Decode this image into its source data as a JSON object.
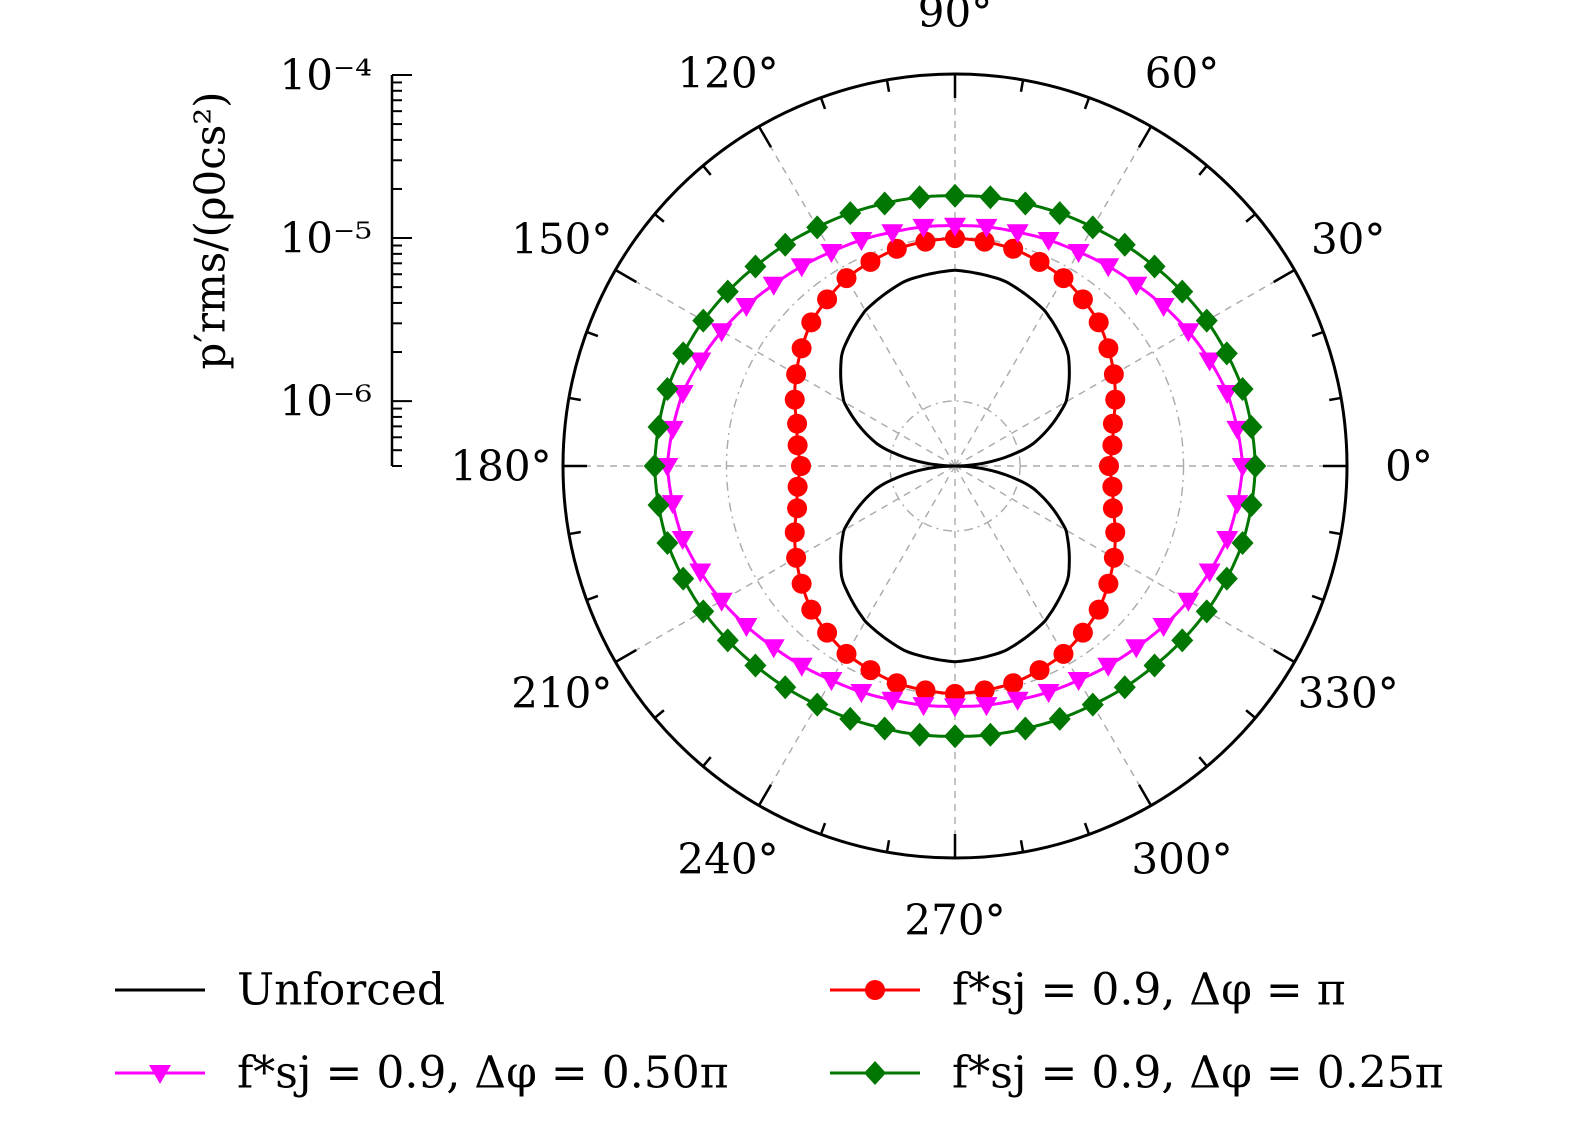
{
  "chart_data": {
    "type": "polar",
    "angular_ticks_deg": [
      0,
      30,
      60,
      90,
      120,
      150,
      180,
      210,
      240,
      270,
      300,
      330
    ],
    "angular_tick_labels": [
      "0°",
      "30°",
      "60°",
      "90°",
      "120°",
      "150°",
      "180°",
      "210°",
      "240°",
      "270°",
      "300°",
      "330°"
    ],
    "radial_axis": {
      "label": "p′rms/(ρ0cs²)",
      "scale": "log",
      "range": [
        4e-07,
        0.0001
      ],
      "tick_values": [
        1e-06,
        1e-05,
        0.0001
      ],
      "tick_labels": [
        "10⁻⁶",
        "10⁻⁵",
        "10⁻⁴"
      ]
    },
    "grid": true,
    "legend_position": "bottom",
    "series": [
      {
        "name": "Unforced",
        "color": "#000000",
        "marker": "none",
        "angles_deg": [
          0,
          15,
          30,
          45,
          60,
          75,
          90,
          105,
          120,
          135,
          150,
          165,
          180,
          195,
          210,
          225,
          240,
          255,
          270,
          285,
          300,
          315,
          330,
          345
        ],
        "values": [
          4e-07,
          1.2e-06,
          2.43e-06,
          3.8e-06,
          5e-06,
          5.95e-06,
          6.3e-06,
          5.95e-06,
          5e-06,
          3.8e-06,
          2.43e-06,
          1.2e-06,
          4e-07,
          1.2e-06,
          2.43e-06,
          3.8e-06,
          5e-06,
          5.95e-06,
          6.3e-06,
          5.95e-06,
          5e-06,
          3.8e-06,
          2.43e-06,
          1.2e-06
        ]
      },
      {
        "name": "f*sj = 0.9, Δφ = π",
        "color": "#ff0000",
        "marker": "circle",
        "angles_deg": [
          0,
          15,
          30,
          45,
          60,
          75,
          90,
          105,
          120,
          135,
          150,
          165,
          180,
          195,
          210,
          225,
          240,
          255,
          270,
          285,
          300,
          315,
          330,
          345
        ],
        "values": [
          3.5e-06,
          4e-06,
          5.3e-06,
          7e-06,
          8.5e-06,
          9.5e-06,
          9.9e-06,
          9.5e-06,
          8.5e-06,
          7e-06,
          5.3e-06,
          4e-06,
          3.5e-06,
          4e-06,
          5.3e-06,
          7e-06,
          8.5e-06,
          9.5e-06,
          9.9e-06,
          9.5e-06,
          8.5e-06,
          7e-06,
          5.3e-06,
          4e-06
        ]
      },
      {
        "name": "f*sj = 0.9, Δφ = 0.50π",
        "color": "#ff00ff",
        "marker": "triangle-down",
        "angles_deg": [
          0,
          15,
          30,
          45,
          60,
          75,
          90,
          105,
          120,
          135,
          150,
          165,
          180,
          195,
          210,
          225,
          240,
          255,
          270,
          285,
          300,
          315,
          330,
          345
        ],
        "values": [
          2.3e-05,
          2.12e-05,
          1.78e-05,
          1.48e-05,
          1.3e-05,
          1.21e-05,
          1.18e-05,
          1.21e-05,
          1.3e-05,
          1.48e-05,
          1.78e-05,
          2.12e-05,
          2.3e-05,
          2.12e-05,
          1.78e-05,
          1.48e-05,
          1.3e-05,
          1.21e-05,
          1.18e-05,
          1.21e-05,
          1.3e-05,
          1.48e-05,
          1.78e-05,
          2.12e-05
        ]
      },
      {
        "name": "f*sj = 0.9, Δφ = 0.25π",
        "color": "#007700",
        "marker": "diamond",
        "angles_deg": [
          0,
          15,
          30,
          45,
          60,
          75,
          90,
          105,
          120,
          135,
          150,
          165,
          180,
          195,
          210,
          225,
          240,
          255,
          270,
          285,
          300,
          315,
          330,
          345
        ],
        "values": [
          2.75e-05,
          2.65e-05,
          2.4e-05,
          2.13e-05,
          1.94e-05,
          1.84e-05,
          1.8e-05,
          1.84e-05,
          1.94e-05,
          2.13e-05,
          2.4e-05,
          2.65e-05,
          2.75e-05,
          2.65e-05,
          2.4e-05,
          2.13e-05,
          1.94e-05,
          1.84e-05,
          1.8e-05,
          1.84e-05,
          1.94e-05,
          2.13e-05,
          2.4e-05,
          2.65e-05
        ]
      }
    ],
    "legend": [
      {
        "label": "Unforced",
        "color": "#000000",
        "marker": "none"
      },
      {
        "label": "f*sj = 0.9, Δφ = π",
        "color": "#ff0000",
        "marker": "circle"
      },
      {
        "label": "f*sj = 0.9, Δφ = 0.50π",
        "color": "#ff00ff",
        "marker": "triangle-down"
      },
      {
        "label": "f*sj = 0.9, Δφ = 0.25π",
        "color": "#007700",
        "marker": "diamond"
      }
    ]
  }
}
